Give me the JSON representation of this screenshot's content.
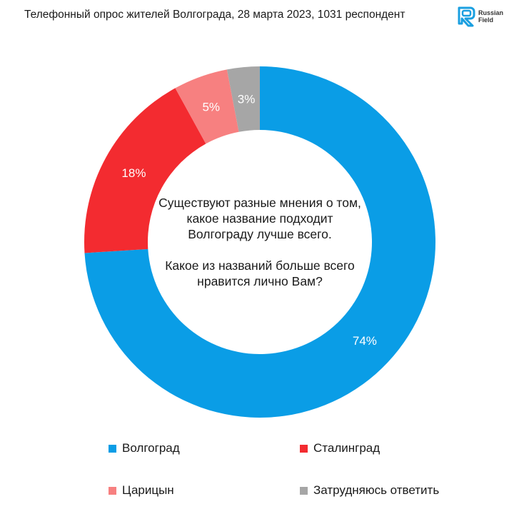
{
  "header": {
    "title": "Телефонный опрос жителей Волгограда, 28 марта 2023, 1031 респондент",
    "logo_line1": "Russian",
    "logo_line2": "Field",
    "logo_icon": "rf-logo-icon",
    "logo_color": "#1a9fe0"
  },
  "center_text": {
    "question_lines": [
      "Существуют разные мнения о том,",
      "какое название подходит",
      "Волгограду лучше всего.",
      "",
      "Какое из названий больше всего",
      "нравится лично Вам?"
    ]
  },
  "chart_data": {
    "type": "pie",
    "subtype": "donut",
    "slices": [
      {
        "label": "Волгоград",
        "value": 74,
        "value_label": "74%",
        "color": "#0a9de6"
      },
      {
        "label": "Сталинград",
        "value": 18,
        "value_label": "18%",
        "color": "#f32b30"
      },
      {
        "label": "Царицын",
        "value": 5,
        "value_label": "5%",
        "color": "#f78080"
      },
      {
        "label": "Затрудняюсь ответить",
        "value": 3,
        "value_label": "3%",
        "color": "#a6a6a6"
      }
    ],
    "legend_placement": "bottom"
  }
}
